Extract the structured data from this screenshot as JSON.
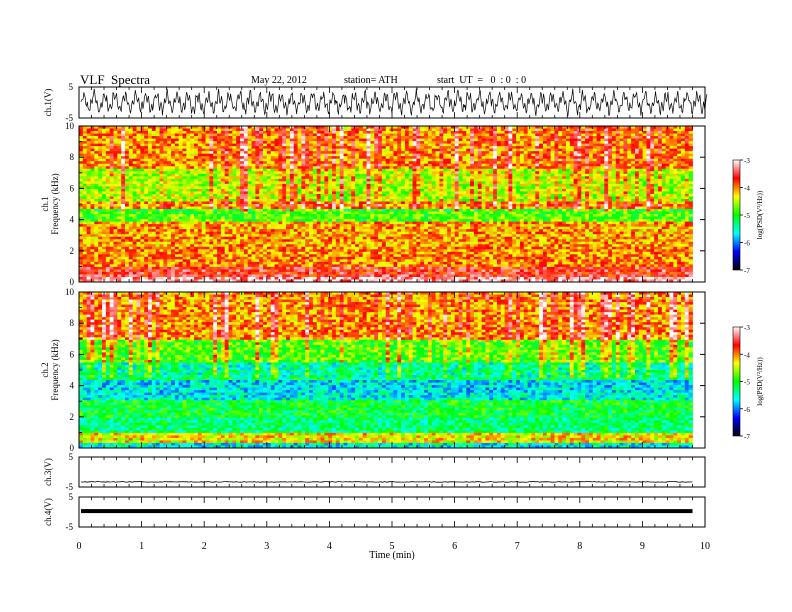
{
  "header": {
    "title": "VLF  Spectra",
    "date": "May 22, 2012",
    "station": "station= ATH",
    "start": "start  UT  =   0  : 0  : 0"
  },
  "colors": {
    "colormap": [
      "#000000",
      "#0000ff",
      "#00ffff",
      "#00ff00",
      "#ffff00",
      "#ff0000",
      "#ffffff"
    ],
    "trace": "#000000"
  },
  "chart_data": [
    {
      "type": "line",
      "panel": "ch1-waveform",
      "ylabel": "ch.1(V)",
      "ylim": [
        -5,
        5
      ],
      "yticks": [
        "5",
        "-5"
      ],
      "xlim": [
        0,
        10
      ],
      "series": [
        {
          "description": "oscillating waveform",
          "amplitude_range": [
            -4,
            4
          ]
        }
      ]
    },
    {
      "type": "heatmap",
      "panel": "ch1-spectrogram",
      "ylabel": "ch.1\nFrequency  (kHz)",
      "ylabel_line1": "ch.1",
      "ylabel_line2": "Frequency  (kHz)",
      "yticks": [
        "0",
        "2",
        "4",
        "6",
        "8",
        "10"
      ],
      "ylim": [
        0,
        10
      ],
      "xlim": [
        0,
        9.8
      ],
      "colorbar": {
        "label": "log(PSD(V²/Hz))",
        "ticks": [
          "-3",
          "-4",
          "-5",
          "-6",
          "-7"
        ],
        "range": [
          -7,
          -3
        ]
      },
      "bands_khz": [
        {
          "from": 0,
          "to": 0.25,
          "level": -3.2
        },
        {
          "from": 0.25,
          "to": 1.0,
          "level": -3.6
        },
        {
          "from": 1.0,
          "to": 2.3,
          "level": -4.0
        },
        {
          "from": 2.3,
          "to": 3.9,
          "level": -4.1
        },
        {
          "from": 3.9,
          "to": 4.6,
          "level": -4.8
        },
        {
          "from": 4.6,
          "to": 5.1,
          "level": -3.8
        },
        {
          "from": 5.1,
          "to": 7.2,
          "level": -4.3
        },
        {
          "from": 7.2,
          "to": 10,
          "level": -3.8
        }
      ]
    },
    {
      "type": "heatmap",
      "panel": "ch2-spectrogram",
      "ylabel": "ch.2\nFrequency  (kHz)",
      "ylabel_line1": "ch.2",
      "ylabel_line2": "Frequency  (kHz)",
      "yticks": [
        "0",
        "2",
        "4",
        "6",
        "8",
        "10"
      ],
      "ylim": [
        0,
        10
      ],
      "xlim": [
        0,
        9.8
      ],
      "colorbar": {
        "label": "log(PSD(V²/Hz))",
        "ticks": [
          "-3",
          "-4",
          "-5",
          "-6",
          "-7"
        ],
        "range": [
          -7,
          -3
        ]
      },
      "bands_khz": [
        {
          "from": 0,
          "to": 0.3,
          "level": -5.6
        },
        {
          "from": 0.3,
          "to": 1.0,
          "level": -4.3
        },
        {
          "from": 1.0,
          "to": 2.0,
          "level": -5.3
        },
        {
          "from": 2.0,
          "to": 3.0,
          "level": -5.1
        },
        {
          "from": 3.0,
          "to": 3.6,
          "level": -5.6
        },
        {
          "from": 3.6,
          "to": 4.3,
          "level": -5.7
        },
        {
          "from": 4.3,
          "to": 5.5,
          "level": -5.2
        },
        {
          "from": 5.5,
          "to": 7.0,
          "level": -4.6
        },
        {
          "from": 7.0,
          "to": 10,
          "level": -3.8
        }
      ]
    },
    {
      "type": "line",
      "panel": "ch3-waveform",
      "ylabel": "ch.3(V)",
      "ylim": [
        -5,
        5
      ],
      "yticks": [
        "5",
        "-5"
      ],
      "xlim": [
        0,
        9.8
      ],
      "series": [
        {
          "description": "near-constant trace",
          "mean": -3.3
        }
      ]
    },
    {
      "type": "line",
      "panel": "ch4-waveform",
      "ylabel": "ch.4(V)",
      "ylim": [
        -5,
        5
      ],
      "yticks": [
        "5",
        "-5"
      ],
      "xlim": [
        0,
        9.8
      ],
      "series": [
        {
          "description": "thick flat trace",
          "mean": 0.3
        }
      ]
    }
  ],
  "xaxis": {
    "label": "Time  (min)",
    "ticks": [
      "0",
      "1",
      "2",
      "3",
      "4",
      "5",
      "6",
      "7",
      "8",
      "9",
      "10"
    ],
    "range": [
      0,
      10
    ]
  }
}
